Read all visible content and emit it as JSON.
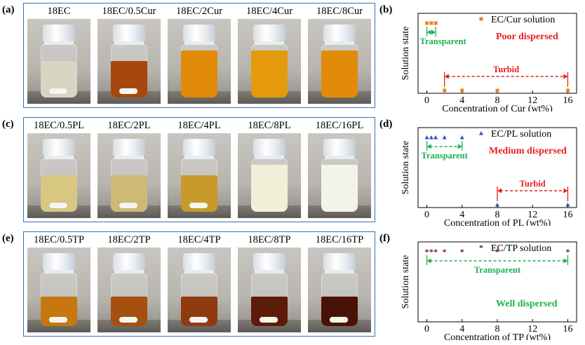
{
  "rows": [
    {
      "label": "(a)",
      "vials": [
        {
          "label": "18EC",
          "liquid": "#d8d6c3",
          "level": 0.78,
          "bar": true
        },
        {
          "label": "18EC/0.5Cur",
          "liquid": "#a7460d",
          "level": 0.78,
          "bar": true
        },
        {
          "label": "18EC/2Cur",
          "liquid": "#e08a08",
          "level": 1.0,
          "bar": false
        },
        {
          "label": "18EC/4Cur",
          "liquid": "#e59a0c",
          "level": 1.0,
          "bar": false
        },
        {
          "label": "18EC/8Cur",
          "liquid": "#e28a0a",
          "level": 1.0,
          "bar": false
        }
      ]
    },
    {
      "label": "(c)",
      "vials": [
        {
          "label": "18EC/0.5PL",
          "liquid": "#d7c781",
          "level": 0.78,
          "bar": true
        },
        {
          "label": "18EC/2PL",
          "liquid": "#cfb976",
          "level": 0.78,
          "bar": true
        },
        {
          "label": "18EC/4PL",
          "liquid": "#c79a2a",
          "level": 0.78,
          "bar": true
        },
        {
          "label": "18EC/8PL",
          "liquid": "#f1efd7",
          "level": 1.0,
          "bar": false
        },
        {
          "label": "18EC/16PL",
          "liquid": "#f3f3e9",
          "level": 1.0,
          "bar": false
        }
      ]
    },
    {
      "label": "(e)",
      "vials": [
        {
          "label": "18EC/0.5TP",
          "liquid": "#c6780e",
          "level": 0.62,
          "bar": true
        },
        {
          "label": "18EC/2TP",
          "liquid": "#a5500f",
          "level": 0.62,
          "bar": true
        },
        {
          "label": "18EC/4TP",
          "liquid": "#8f3a0f",
          "level": 0.62,
          "bar": true
        },
        {
          "label": "18EC/8TP",
          "liquid": "#5e1b08",
          "level": 0.62,
          "bar": true
        },
        {
          "label": "18EC/16TP",
          "liquid": "#4a1206",
          "level": 0.62,
          "bar": true
        }
      ]
    }
  ],
  "chart_data": [
    {
      "panel": "(b)",
      "type": "scatter",
      "legend": "EC/Cur solution",
      "marker": "square",
      "color": "#e8851d",
      "ylabel": "Solution state",
      "xlabel": "Concentration of Cur (wt%)",
      "xticks": [
        "0",
        "4",
        "8",
        "12",
        "16"
      ],
      "xlim": [
        -1,
        17
      ],
      "points": [
        {
          "x": 0,
          "state": "transparent"
        },
        {
          "x": 0.5,
          "state": "transparent"
        },
        {
          "x": 1,
          "state": "transparent"
        },
        {
          "x": 2,
          "state": "turbid"
        },
        {
          "x": 4,
          "state": "turbid"
        },
        {
          "x": 8,
          "state": "turbid"
        },
        {
          "x": 16,
          "state": "turbid"
        }
      ],
      "dispersion": "Poor dispersed",
      "dispersion_color": "#e52020",
      "regions": [
        {
          "text": "Transparent",
          "from": 0,
          "to": 1,
          "color": "#1fb050",
          "state": "transparent"
        },
        {
          "text": "Turbid",
          "from": 2,
          "to": 16,
          "color": "#e52020",
          "state": "turbid"
        }
      ]
    },
    {
      "panel": "(d)",
      "type": "scatter",
      "legend": "EC/PL solution",
      "marker": "triangle",
      "color": "#2f4fc8",
      "ylabel": "Solution state",
      "xlabel": "Concentration of PL (wt%)",
      "xticks": [
        "0",
        "4",
        "8",
        "12",
        "16"
      ],
      "xlim": [
        -1,
        17
      ],
      "points": [
        {
          "x": 0,
          "state": "transparent"
        },
        {
          "x": 0.5,
          "state": "transparent"
        },
        {
          "x": 1,
          "state": "transparent"
        },
        {
          "x": 2,
          "state": "transparent"
        },
        {
          "x": 4,
          "state": "transparent"
        },
        {
          "x": 8,
          "state": "turbid"
        },
        {
          "x": 16,
          "state": "turbid"
        }
      ],
      "dispersion": "Medium dispersed",
      "dispersion_color": "#e52020",
      "regions": [
        {
          "text": "Transparent",
          "from": 0,
          "to": 4,
          "color": "#1fb050",
          "state": "transparent"
        },
        {
          "text": "Turbid",
          "from": 8,
          "to": 16,
          "color": "#e52020",
          "state": "turbid"
        }
      ]
    },
    {
      "panel": "(f)",
      "type": "scatter",
      "legend": "EC/TP solution",
      "marker": "star",
      "color": "#7a1028",
      "ylabel": "Solution state",
      "xlabel": "Concentration of TP (wt%)",
      "xticks": [
        "0",
        "4",
        "8",
        "12",
        "16"
      ],
      "xlim": [
        -1,
        17
      ],
      "points": [
        {
          "x": 0,
          "state": "transparent"
        },
        {
          "x": 0.5,
          "state": "transparent"
        },
        {
          "x": 1,
          "state": "transparent"
        },
        {
          "x": 2,
          "state": "transparent"
        },
        {
          "x": 4,
          "state": "transparent"
        },
        {
          "x": 8,
          "state": "transparent"
        },
        {
          "x": 16,
          "state": "transparent"
        }
      ],
      "dispersion": "Well dispersed",
      "dispersion_color": "#1fb050",
      "regions": [
        {
          "text": "Transparent",
          "from": 0,
          "to": 16,
          "color": "#1fb050",
          "state": "transparent"
        }
      ]
    }
  ]
}
